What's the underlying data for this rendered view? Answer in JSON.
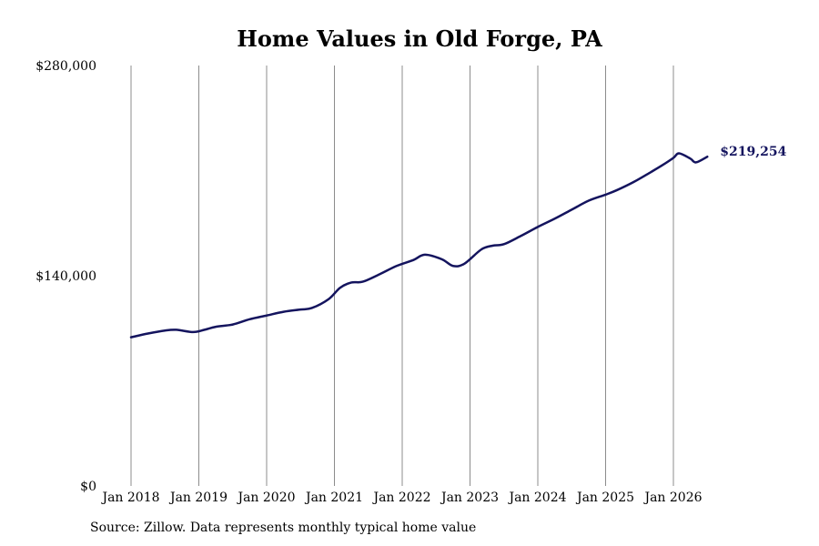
{
  "chart_data": {
    "type": "line",
    "title": "Home Values in Old Forge, PA",
    "xlabel": "",
    "ylabel": "",
    "ylim": [
      0,
      280000
    ],
    "yticks": [
      {
        "value": 0,
        "label": "$0"
      },
      {
        "value": 140000,
        "label": "$140,000"
      },
      {
        "value": 280000,
        "label": "$280,000"
      }
    ],
    "xticks": [
      "Jan 2018",
      "Jan 2019",
      "Jan 2020",
      "Jan 2021",
      "Jan 2022",
      "Jan 2023",
      "Jan 2024",
      "Jan 2025",
      "Jan 2026"
    ],
    "xlim": [
      "2018-01",
      "2026-07"
    ],
    "grid": "vertical",
    "colors": {
      "line": "#14145e",
      "grid": "#8c8c8c"
    },
    "series": [
      {
        "x": [
          "2018-01",
          "2018-04",
          "2018-07",
          "2018-09",
          "2018-12",
          "2019-02",
          "2019-04",
          "2019-07",
          "2019-10",
          "2020-01",
          "2020-04",
          "2020-07",
          "2020-09",
          "2020-12",
          "2021-02",
          "2021-04",
          "2021-06",
          "2021-09",
          "2021-12",
          "2022-03",
          "2022-05",
          "2022-08",
          "2022-10",
          "2022-12",
          "2023-03",
          "2023-05",
          "2023-07",
          "2023-10",
          "2024-01",
          "2024-04",
          "2024-07",
          "2024-10",
          "2025-01",
          "2025-03",
          "2025-06",
          "2025-09",
          "2025-11",
          "2026-01",
          "2026-02",
          "2026-04",
          "2026-05",
          "2026-07"
        ],
        "values": [
          99000,
          101500,
          103500,
          104000,
          102500,
          104000,
          106000,
          107500,
          111000,
          113500,
          116000,
          117500,
          118500,
          124500,
          132000,
          135500,
          136000,
          141000,
          146500,
          150500,
          154000,
          151000,
          146500,
          148000,
          157500,
          160000,
          161000,
          166500,
          172500,
          178000,
          184000,
          190000,
          194000,
          197000,
          202500,
          209000,
          213500,
          218500,
          221500,
          218000,
          215500,
          219254
        ]
      }
    ],
    "end_label": "$219,254",
    "source": "Source: Zillow. Data represents monthly typical home value"
  }
}
